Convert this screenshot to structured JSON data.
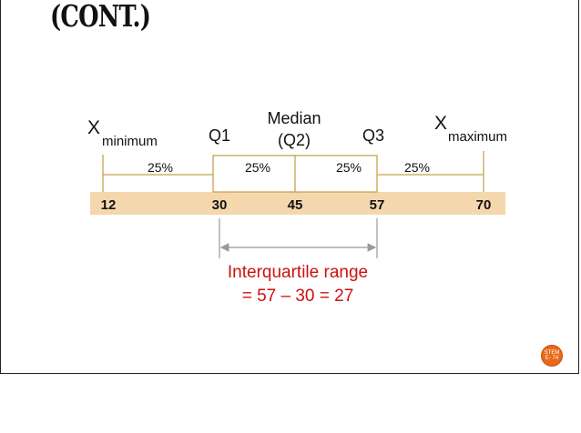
{
  "slide": {
    "title": "(CONT.)",
    "badge_line1": "STEM",
    "badge_line2": "E- 74"
  },
  "diagram": {
    "x_min_label": "X",
    "x_min_sub": "minimum",
    "q1_label": "Q1",
    "median_label": "Median",
    "median_sub": "(Q2)",
    "q3_label": "Q3",
    "x_max_label": "X",
    "x_max_sub": "maximum",
    "pct_1": "25%",
    "pct_2": "25%",
    "pct_3": "25%",
    "pct_4": "25%",
    "values": [
      "12",
      "30",
      "45",
      "57",
      "70"
    ],
    "iqr_label": "Interquartile range",
    "iqr_formula": "= 57 – 30 = 27"
  },
  "colors": {
    "number_strip": "#f5d7ad",
    "box_line": "#c8a050",
    "iqr_text": "#cc1111",
    "iqr_arrow": "#999999",
    "badge": "#e86a1a"
  }
}
